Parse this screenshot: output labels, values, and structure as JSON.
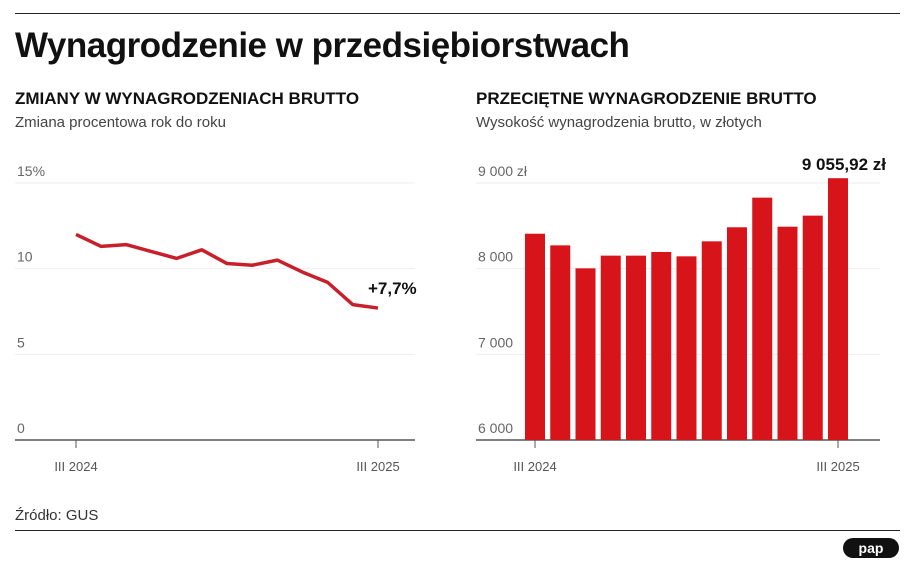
{
  "title": "Wynagrodzenie w przedsiębiorstwach",
  "source": "Źródło: GUS",
  "logo_text": "pap",
  "colors": {
    "accent": "#d7141a",
    "line": "#c8202a"
  },
  "chart_data": [
    {
      "type": "line",
      "title": "ZMIANY W WYNAGRODZENIACH BRUTTO",
      "subtitle": "Zmiana procentowa rok do roku",
      "ylim": [
        0,
        15
      ],
      "yticks": [
        {
          "value": 15,
          "label": "15%"
        },
        {
          "value": 10,
          "label": "10"
        },
        {
          "value": 5,
          "label": "5"
        },
        {
          "value": 0,
          "label": "0"
        }
      ],
      "xtick_labels": [
        {
          "index": 0,
          "label": "III 2024"
        },
        {
          "index": 12,
          "label": "III 2025"
        }
      ],
      "values": [
        12.0,
        11.3,
        11.4,
        11.0,
        10.6,
        11.1,
        10.3,
        10.2,
        10.5,
        9.8,
        9.2,
        7.9,
        7.7
      ],
      "annotation": "+7,7%",
      "grid": true
    },
    {
      "type": "bar",
      "title": "PRZECIĘTNE WYNAGRODZENIE BRUTTO",
      "subtitle": "Wysokość wynagrodzenia brutto, w złotych",
      "ylim": [
        6000,
        9000
      ],
      "yticks": [
        {
          "value": 9000,
          "label": "9 000 zł"
        },
        {
          "value": 8000,
          "label": "8 000"
        },
        {
          "value": 7000,
          "label": "7 000"
        },
        {
          "value": 6000,
          "label": "6 000"
        }
      ],
      "xtick_labels": [
        {
          "index": 0,
          "label": "III 2024"
        },
        {
          "index": 12,
          "label": "III 2025"
        }
      ],
      "values": [
        8408,
        8272,
        8004,
        8152,
        8152,
        8195,
        8144,
        8319,
        8483,
        8829,
        8490,
        8619,
        9055.92
      ],
      "annotation": "9 055,92 zł",
      "grid": true
    }
  ]
}
